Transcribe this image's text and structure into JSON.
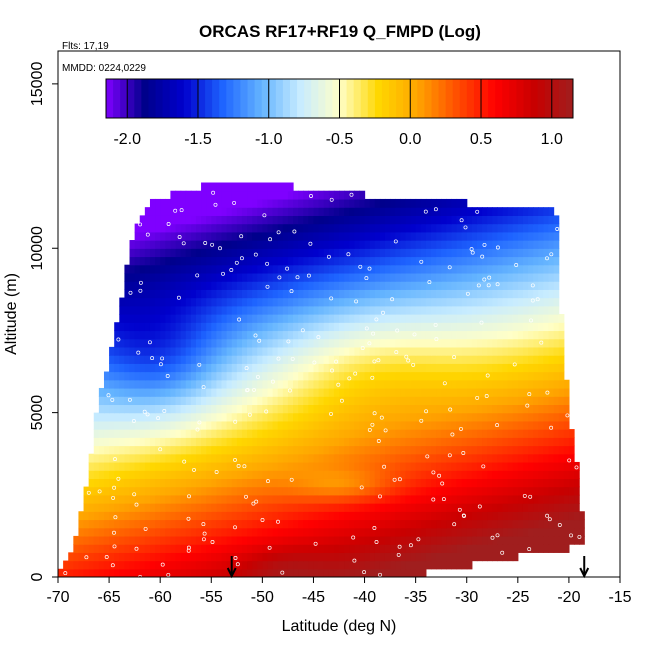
{
  "chart_data": {
    "type": "heatmap",
    "title": "ORCAS RF17+RF19 Q_FMPD (Log)",
    "notes": [
      "Flts: 17,19",
      "MMDD: 0224,0229"
    ],
    "xlabel": "Latitude (deg N)",
    "ylabel": "Altitude (m)",
    "xlim": [
      -70,
      -15
    ],
    "ylim": [
      0,
      16000
    ],
    "x_ticks": [
      -70,
      -65,
      -60,
      -55,
      -50,
      -45,
      -40,
      -35,
      -30,
      -25,
      -20,
      -15
    ],
    "y_ticks": [
      0,
      5000,
      10000,
      15000
    ],
    "colorbar": {
      "range": [
        -2.15,
        1.15
      ],
      "ticks": [
        -2.0,
        -1.5,
        -1.0,
        -0.5,
        0.0,
        0.5,
        1.0
      ],
      "tick_labels": [
        "-2.0",
        "-1.5",
        "-1.0",
        "-0.5",
        "0.0",
        "0.5",
        "1.0"
      ],
      "colors": [
        "#7f00ff",
        "#00008b",
        "#0000cd",
        "#1e64ff",
        "#64b4ff",
        "#c8ecff",
        "#ffffc8",
        "#ffd700",
        "#ffa500",
        "#ff5000",
        "#ff0000",
        "#c80000",
        "#a01e1e"
      ]
    },
    "arrows_at_latitude": [
      -53,
      -18.5
    ],
    "data_description": "Altitude–latitude curtain of log10 specific humidity; low values (about -2) above 10000 m in the south, high values (about 1) near the surface in the north."
  }
}
